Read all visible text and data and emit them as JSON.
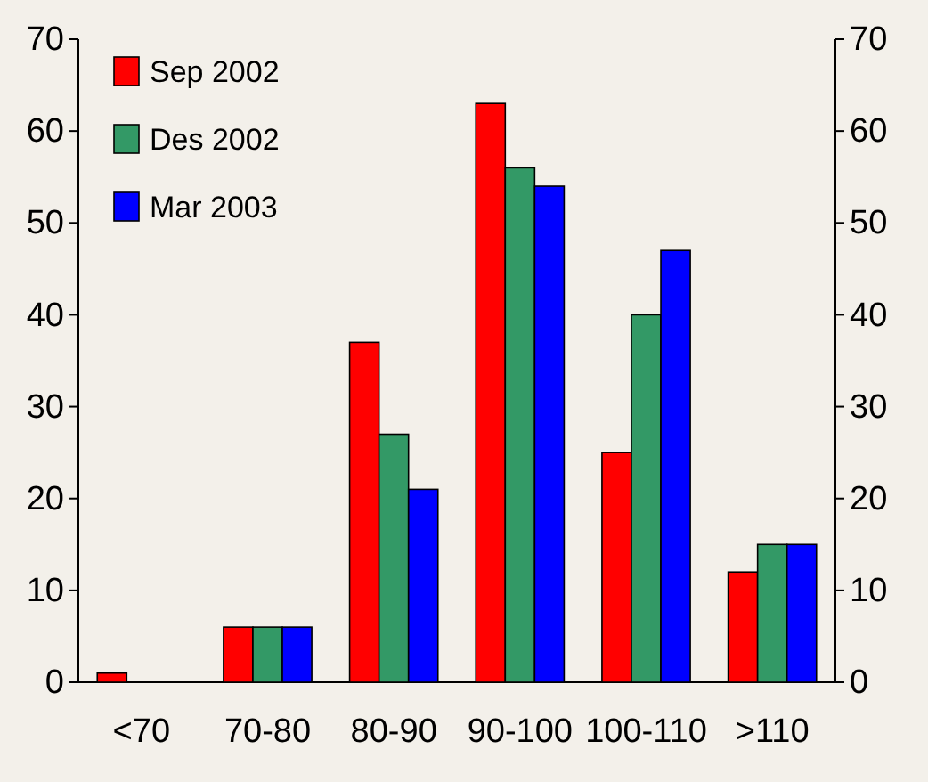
{
  "chart_data": {
    "type": "bar",
    "categories": [
      "<70",
      "70-80",
      "80-90",
      "90-100",
      "100-110",
      ">110"
    ],
    "series": [
      {
        "name": "Sep 2002",
        "color": "#ff0000",
        "values": [
          1,
          6,
          37,
          63,
          25,
          12
        ]
      },
      {
        "name": "Des 2002",
        "color": "#339966",
        "values": [
          0,
          6,
          27,
          56,
          40,
          15
        ]
      },
      {
        "name": "Mar 2003",
        "color": "#0000ff",
        "values": [
          0,
          6,
          21,
          54,
          47,
          15
        ]
      }
    ],
    "ylim": [
      0,
      70
    ],
    "yticks": [
      0,
      10,
      20,
      30,
      40,
      50,
      60,
      70
    ],
    "y2lim": [
      0,
      70
    ],
    "y2ticks": [
      0,
      10,
      20,
      30,
      40,
      50,
      60,
      70
    ],
    "legend": "top left",
    "grid": false
  }
}
